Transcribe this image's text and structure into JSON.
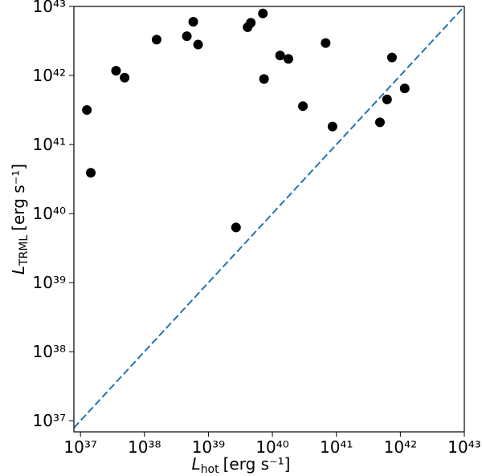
{
  "chart_data": {
    "type": "scatter",
    "xlabel": {
      "symbol": "L",
      "subscript": "hot",
      "unit": "[erg s⁻¹]"
    },
    "ylabel": {
      "symbol": "L",
      "subscript": "TRML",
      "unit": "[erg s⁻¹]"
    },
    "x_log": true,
    "y_log": true,
    "xlim": [
      7.9e+36,
      1e+43
    ],
    "ylim": [
      6.9e+36,
      1e+43
    ],
    "xticks": [
      {
        "value": 1e+37,
        "label": "10³⁷"
      },
      {
        "value": 1e+38,
        "label": "10³⁸"
      },
      {
        "value": 1e+39,
        "label": "10³⁹"
      },
      {
        "value": 1e+40,
        "label": "10⁴⁰"
      },
      {
        "value": 1e+41,
        "label": "10⁴¹"
      },
      {
        "value": 1e+42,
        "label": "10⁴²"
      },
      {
        "value": 1e+43,
        "label": "10⁴³"
      }
    ],
    "yticks": [
      {
        "value": 1e+37,
        "label": "10³⁷"
      },
      {
        "value": 1e+38,
        "label": "10³⁸"
      },
      {
        "value": 1e+39,
        "label": "10³⁹"
      },
      {
        "value": 1e+40,
        "label": "10⁴⁰"
      },
      {
        "value": 1e+41,
        "label": "10⁴¹"
      },
      {
        "value": 1e+42,
        "label": "10⁴²"
      },
      {
        "value": 1e+43,
        "label": "10⁴³"
      }
    ],
    "grid": false,
    "color": "#000000",
    "identity_line": {
      "color": "#1f77b4",
      "dashed": true
    },
    "x": [
      1.26e+37,
      1.45e+37,
      3.6e+37,
      4.9e+37,
      1.55e+38,
      4.6e+38,
      5.8e+38,
      6.9e+38,
      2.7e+39,
      4.1e+39,
      4.6e+39,
      7.1e+39,
      7.4e+39,
      1.32e+40,
      1.78e+40,
      3e+40,
      6.8e+40,
      8.7e+40,
      4.8e+41,
      6.2e+41,
      7.4e+41,
      1.17e+42
    ],
    "y": [
      3.16e+41,
      3.9e+40,
      1.17e+42,
      9.3e+41,
      3.3e+42,
      3.7e+42,
      6e+42,
      2.8e+42,
      6.3e+39,
      5e+42,
      5.8e+42,
      7.9e+42,
      8.9e+41,
      1.95e+42,
      1.74e+42,
      3.6e+41,
      2.95e+42,
      1.82e+41,
      2.1e+41,
      4.5e+41,
      1.82e+42,
      6.5e+41
    ]
  }
}
